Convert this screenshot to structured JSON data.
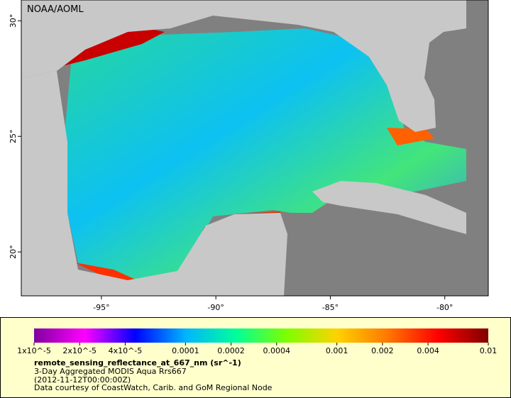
{
  "map": {
    "credit": "NOAA/AOML",
    "xlim": [
      -98.5,
      -78.1
    ],
    "ylim": [
      18.1,
      30.9
    ],
    "xticks": [
      {
        "value": -95,
        "label": "-95°"
      },
      {
        "value": -90,
        "label": "-90°"
      },
      {
        "value": -85,
        "label": "-85°"
      },
      {
        "value": -80,
        "label": "-80°"
      }
    ],
    "yticks": [
      {
        "value": 20,
        "label": "20°"
      },
      {
        "value": 25,
        "label": "25°"
      },
      {
        "value": 30,
        "label": "30°"
      }
    ]
  },
  "colorbar": {
    "log": true,
    "lim": [
      1e-05,
      0.01
    ],
    "colors": [
      "#80009f",
      "#ff00ff",
      "#0000ff",
      "#00b4ff",
      "#00ff9a",
      "#7cff00",
      "#ffd200",
      "#ff7800",
      "#ff0000",
      "#7f0000"
    ],
    "ticks": [
      {
        "value": 1e-05,
        "label": "1x10^-5"
      },
      {
        "value": 2e-05,
        "label": "2x10^-5"
      },
      {
        "value": 4e-05,
        "label": "4x10^-5"
      },
      0.0001,
      0.0002,
      0.0004,
      0.001,
      0.002,
      0.004,
      0.01
    ]
  },
  "caption": {
    "title": "remote_sensing_reflectance_at_667_nm (sr^-1)",
    "lines": [
      "3-Day Aggregated MODIS Aqua Rrs667",
      "(2012-11-12T00:00:00Z)",
      "Data courtesy of CoastWatch, Carib. and GoM Regional Node"
    ]
  }
}
